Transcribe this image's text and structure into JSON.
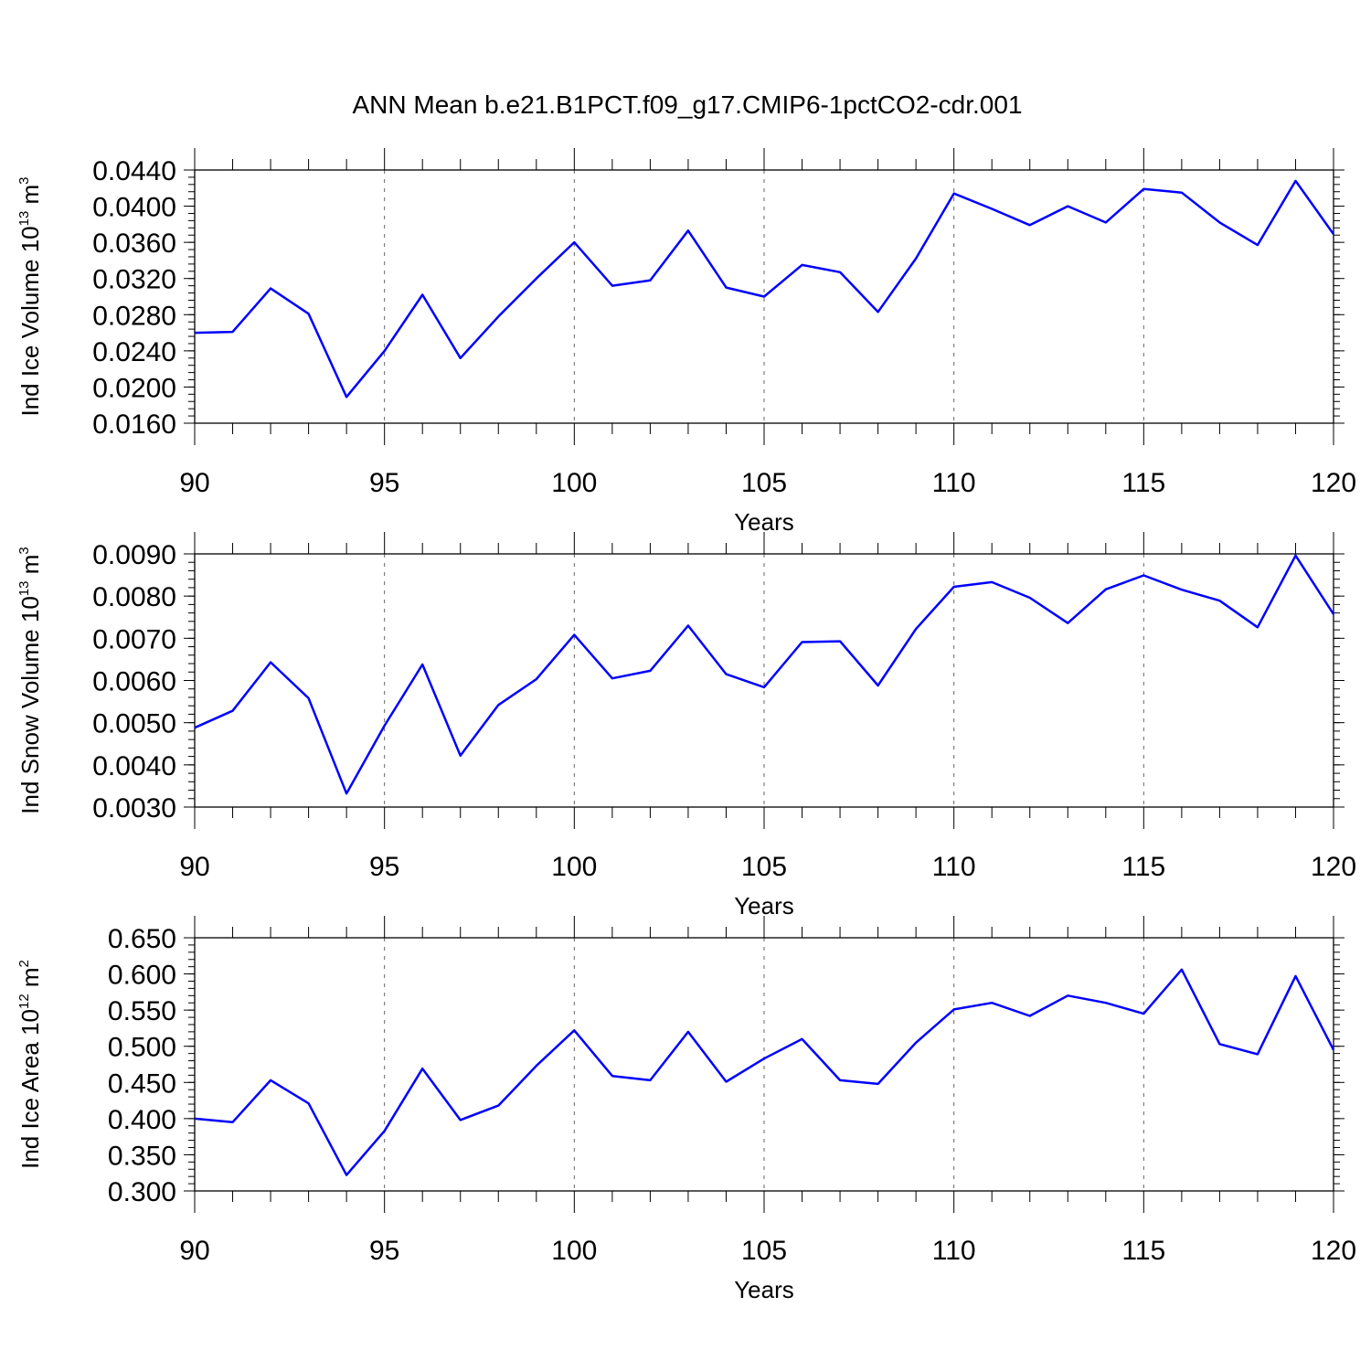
{
  "figure": {
    "title": "ANN Mean b.e21.B1PCT.f09_g17.CMIP6-1pctCO2-cdr.001"
  },
  "chart_data": [
    {
      "type": "line",
      "title": "",
      "xlabel": "Years",
      "ylabel": {
        "text": "Ind Ice Volume 10",
        "exponent": "13",
        "unit": " m",
        "unit_exponent": "3"
      },
      "xlim": [
        90,
        120
      ],
      "ylim": [
        0.016,
        0.044
      ],
      "xticks": [
        90,
        95,
        100,
        105,
        110,
        115,
        120
      ],
      "yticks": [
        0.016,
        0.02,
        0.024,
        0.028,
        0.032,
        0.036,
        0.04,
        0.044
      ],
      "ytick_labels": [
        "0.0160",
        "0.0200",
        "0.0240",
        "0.0280",
        "0.0320",
        "0.0360",
        "0.0400",
        "0.0440"
      ],
      "y_minor_step": 0.0008,
      "grid_x": [
        95,
        100,
        105,
        110,
        115
      ],
      "color": "#0000ff",
      "x": [
        90,
        91,
        92,
        93,
        94,
        95,
        96,
        97,
        98,
        99,
        100,
        101,
        102,
        103,
        104,
        105,
        106,
        107,
        108,
        109,
        110,
        111,
        112,
        113,
        114,
        115,
        116,
        117,
        118,
        119,
        120
      ],
      "values": [
        0.026,
        0.0261,
        0.0309,
        0.0281,
        0.0189,
        0.024,
        0.0302,
        0.0232,
        0.0278,
        0.032,
        0.036,
        0.0312,
        0.0318,
        0.0373,
        0.031,
        0.03,
        0.0335,
        0.0327,
        0.0283,
        0.0342,
        0.0414,
        0.0397,
        0.0379,
        0.04,
        0.0382,
        0.0419,
        0.0415,
        0.0382,
        0.0357,
        0.0428,
        0.0369
      ]
    },
    {
      "type": "line",
      "title": "",
      "xlabel": "Years",
      "ylabel": {
        "text": "Ind Snow Volume 10",
        "exponent": "13",
        "unit": " m",
        "unit_exponent": "3"
      },
      "xlim": [
        90,
        120
      ],
      "ylim": [
        0.003,
        0.009
      ],
      "xticks": [
        90,
        95,
        100,
        105,
        110,
        115,
        120
      ],
      "yticks": [
        0.003,
        0.004,
        0.005,
        0.006,
        0.007,
        0.008,
        0.009
      ],
      "ytick_labels": [
        "0.0030",
        "0.0040",
        "0.0050",
        "0.0060",
        "0.0070",
        "0.0080",
        "0.0090"
      ],
      "y_minor_step": 0.0002,
      "grid_x": [
        95,
        100,
        105,
        110,
        115
      ],
      "color": "#0000ff",
      "x": [
        90,
        91,
        92,
        93,
        94,
        95,
        96,
        97,
        98,
        99,
        100,
        101,
        102,
        103,
        104,
        105,
        106,
        107,
        108,
        109,
        110,
        111,
        112,
        113,
        114,
        115,
        116,
        117,
        118,
        119,
        120
      ],
      "values": [
        0.00488,
        0.00528,
        0.00643,
        0.00558,
        0.00332,
        0.00493,
        0.00638,
        0.00422,
        0.00542,
        0.00603,
        0.00708,
        0.00605,
        0.00623,
        0.0073,
        0.00615,
        0.00584,
        0.00691,
        0.00693,
        0.00588,
        0.00722,
        0.00822,
        0.00833,
        0.00796,
        0.00736,
        0.00816,
        0.00849,
        0.00815,
        0.00789,
        0.00726,
        0.00896,
        0.00757
      ]
    },
    {
      "type": "line",
      "title": "",
      "xlabel": "Years",
      "ylabel": {
        "text": "Ind Ice Area 10",
        "exponent": "12",
        "unit": " m",
        "unit_exponent": "2"
      },
      "xlim": [
        90,
        120
      ],
      "ylim": [
        0.3,
        0.65
      ],
      "xticks": [
        90,
        95,
        100,
        105,
        110,
        115,
        120
      ],
      "yticks": [
        0.3,
        0.35,
        0.4,
        0.45,
        0.5,
        0.55,
        0.6,
        0.65
      ],
      "ytick_labels": [
        "0.300",
        "0.350",
        "0.400",
        "0.450",
        "0.500",
        "0.550",
        "0.600",
        "0.650"
      ],
      "y_minor_step": 0.01,
      "grid_x": [
        95,
        100,
        105,
        110,
        115
      ],
      "color": "#0000ff",
      "x": [
        90,
        91,
        92,
        93,
        94,
        95,
        96,
        97,
        98,
        99,
        100,
        101,
        102,
        103,
        104,
        105,
        106,
        107,
        108,
        109,
        110,
        111,
        112,
        113,
        114,
        115,
        116,
        117,
        118,
        119,
        120
      ],
      "values": [
        0.4,
        0.395,
        0.453,
        0.421,
        0.322,
        0.383,
        0.469,
        0.398,
        0.418,
        0.473,
        0.522,
        0.459,
        0.453,
        0.52,
        0.451,
        0.483,
        0.51,
        0.453,
        0.448,
        0.505,
        0.551,
        0.56,
        0.542,
        0.57,
        0.56,
        0.545,
        0.606,
        0.503,
        0.489,
        0.597,
        0.495
      ]
    }
  ]
}
